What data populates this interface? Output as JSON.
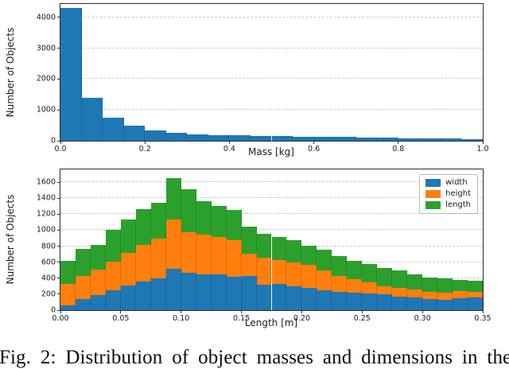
{
  "figure": {
    "caption": "Fig. 2: Distribution of object masses and dimensions in the"
  },
  "colors": {
    "bar_blue": "#1f77b4",
    "bar_orange": "#ff7f0e",
    "bar_green": "#2ca02c"
  },
  "chart_data": [
    {
      "type": "bar",
      "subtype": "histogram",
      "title": "",
      "xlabel": "Mass [kg]",
      "ylabel": "Number of Objects",
      "xlim": [
        0.0,
        1.0
      ],
      "ylim": [
        0,
        4430
      ],
      "bin_start": 0.0,
      "bin_width": 0.05,
      "bar_color": "#1f77b4",
      "grid": "horizontal-dashed",
      "legend": null,
      "values": [
        4300,
        1400,
        760,
        490,
        345,
        250,
        205,
        185,
        170,
        158,
        148,
        138,
        128,
        118,
        108,
        98,
        88,
        78,
        65,
        52
      ],
      "xtick_values": [
        0.0,
        0.2,
        0.4,
        0.6,
        0.8,
        1.0
      ],
      "xtick_labels": [
        "0.0",
        "0.2",
        "0.4",
        "0.6",
        "0.8",
        "1.0"
      ],
      "ytick_values": [
        0,
        1000,
        2000,
        3000,
        4000
      ],
      "ytick_labels": [
        "0",
        "1000",
        "2000",
        "3000",
        "4000"
      ]
    },
    {
      "type": "bar",
      "subtype": "stacked-histogram",
      "title": "",
      "xlabel": "Length [m]",
      "ylabel": "Number of Objects",
      "xlim": [
        0.0,
        0.35
      ],
      "ylim": [
        0,
        1760
      ],
      "bin_start": 0.0,
      "bin_width": 0.0125,
      "grid": "horizontal-dashed",
      "legend_position": "upper right",
      "series": [
        {
          "name": "width",
          "color": "#1f77b4",
          "values": [
            60,
            140,
            190,
            250,
            310,
            355,
            400,
            520,
            465,
            450,
            445,
            415,
            425,
            320,
            330,
            300,
            275,
            250,
            230,
            215,
            207,
            197,
            165,
            158,
            138,
            131,
            148,
            155
          ]
        },
        {
          "name": "height",
          "color": "#ff7f0e",
          "values": [
            270,
            290,
            320,
            360,
            405,
            460,
            500,
            615,
            510,
            490,
            470,
            460,
            285,
            340,
            295,
            295,
            290,
            250,
            200,
            175,
            146,
            99,
            115,
            99,
            92,
            83,
            89,
            69
          ]
        },
        {
          "name": "length",
          "color": "#2ca02c",
          "values": [
            290,
            340,
            305,
            390,
            415,
            445,
            445,
            515,
            535,
            420,
            390,
            375,
            335,
            295,
            295,
            285,
            245,
            260,
            250,
            230,
            224,
            231,
            215,
            195,
            182,
            181,
            142,
            149
          ]
        }
      ],
      "xtick_values": [
        0.0,
        0.05,
        0.1,
        0.15,
        0.2,
        0.25,
        0.3,
        0.35
      ],
      "xtick_labels": [
        "0.00",
        "0.05",
        "0.10",
        "0.15",
        "0.20",
        "0.25",
        "0.30",
        "0.35"
      ],
      "ytick_values": [
        0,
        200,
        400,
        600,
        800,
        1000,
        1200,
        1400,
        1600
      ],
      "ytick_labels": [
        "0",
        "200",
        "400",
        "600",
        "800",
        "1000",
        "1200",
        "1400",
        "1600"
      ]
    }
  ]
}
